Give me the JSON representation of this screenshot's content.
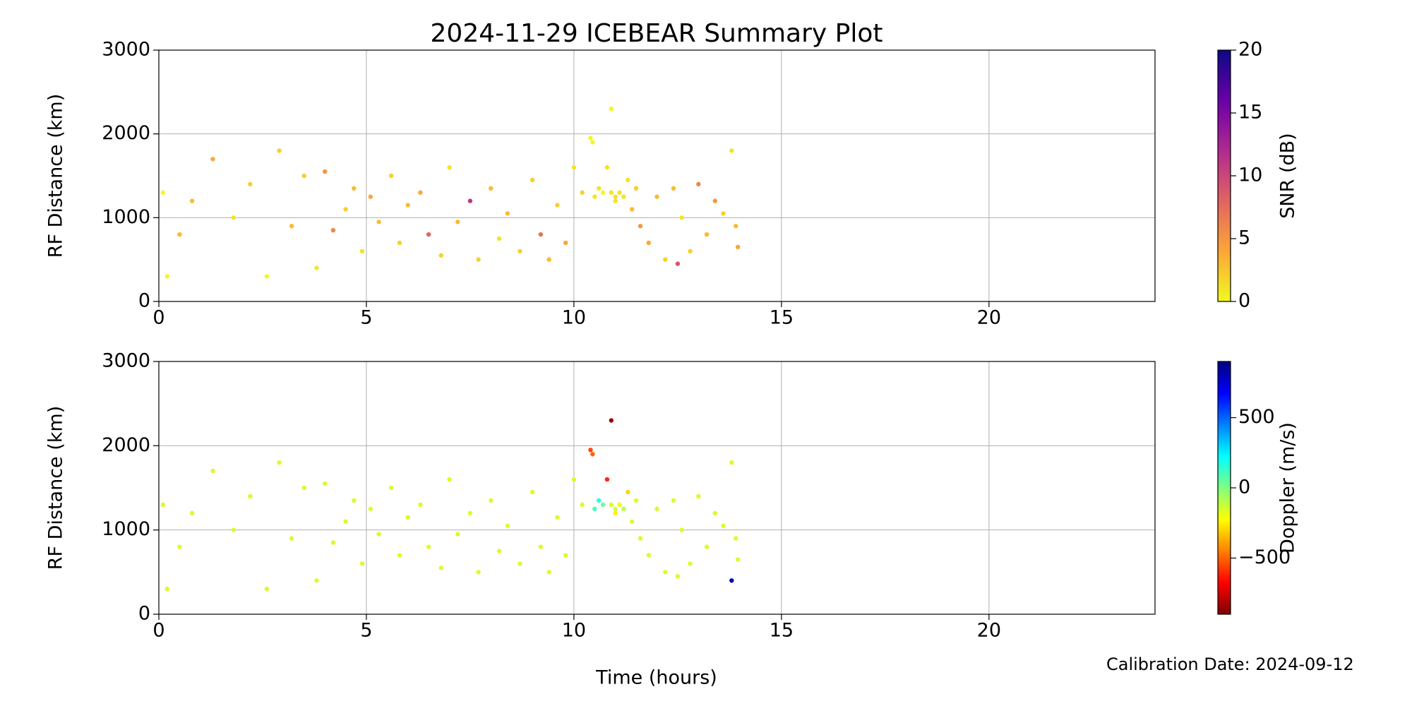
{
  "chart_data": [
    {
      "type": "scatter",
      "title": "2024-11-29 ICEBEAR Summary Plot",
      "ylabel": "RF Distance (km)",
      "xlim": [
        0,
        24
      ],
      "ylim": [
        0,
        3000
      ],
      "xticks": [
        0,
        5,
        10,
        15,
        20
      ],
      "yticks": [
        0,
        1000,
        2000,
        3000
      ],
      "grid": true,
      "colorbar": {
        "label": "SNR (dB)",
        "clim": [
          0,
          20
        ],
        "ticks": [
          0,
          5,
          10,
          15,
          20
        ],
        "colormap": [
          "#f0f921",
          "#fca636",
          "#e16462",
          "#b12a90",
          "#6a00a8",
          "#0d0887"
        ]
      },
      "x": [
        0.1,
        0.2,
        0.5,
        0.8,
        1.3,
        1.8,
        2.2,
        2.6,
        2.9,
        3.2,
        3.5,
        3.8,
        4.0,
        4.2,
        4.5,
        4.7,
        4.9,
        5.1,
        5.3,
        5.6,
        5.8,
        6.0,
        6.3,
        6.5,
        6.8,
        7.0,
        7.2,
        7.5,
        7.7,
        8.0,
        8.2,
        8.4,
        8.7,
        9.0,
        9.2,
        9.4,
        9.6,
        9.8,
        10.0,
        10.2,
        10.4,
        10.45,
        10.5,
        10.6,
        10.7,
        10.8,
        10.9,
        11.0,
        11.1,
        11.2,
        11.3,
        11.4,
        11.5,
        11.6,
        11.8,
        12.0,
        12.2,
        12.4,
        12.6,
        12.8,
        13.0,
        13.2,
        13.4,
        13.6,
        13.8,
        13.9,
        13.95,
        10.9,
        11.0,
        12.5
      ],
      "y": [
        1300,
        300,
        800,
        1200,
        1700,
        1000,
        1400,
        300,
        1800,
        900,
        1500,
        400,
        1550,
        850,
        1100,
        1350,
        600,
        1250,
        950,
        1500,
        700,
        1150,
        1300,
        800,
        550,
        1600,
        950,
        1200,
        500,
        1350,
        750,
        1050,
        600,
        1450,
        800,
        500,
        1150,
        700,
        1600,
        1300,
        1950,
        1900,
        1250,
        1350,
        1300,
        1600,
        2300,
        1200,
        1300,
        1250,
        1450,
        1100,
        1350,
        900,
        700,
        1250,
        500,
        1350,
        1000,
        600,
        1400,
        800,
        1200,
        1050,
        1800,
        900,
        650,
        1300,
        1250,
        450
      ],
      "c": [
        0,
        0,
        3,
        3,
        4,
        1,
        2,
        0,
        2,
        3,
        2,
        1,
        5,
        6,
        2,
        3,
        1,
        4,
        3,
        2,
        2,
        3,
        4,
        8,
        2,
        1,
        3,
        11,
        2,
        3,
        1,
        3,
        2,
        2,
        7,
        3,
        2,
        4,
        1,
        2,
        0,
        0,
        1,
        1,
        0,
        1,
        0,
        1,
        1,
        1,
        1,
        3,
        2,
        5,
        4,
        3,
        2,
        3,
        1,
        2,
        6,
        3,
        5,
        2,
        1,
        3,
        4,
        1,
        1,
        9
      ]
    },
    {
      "type": "scatter",
      "ylabel": "RF Distance (km)",
      "xlabel": "Time (hours)",
      "annotation": "Calibration Date: 2024-09-12",
      "xlim": [
        0,
        24
      ],
      "ylim": [
        0,
        3000
      ],
      "xticks": [
        0,
        5,
        10,
        15,
        20
      ],
      "yticks": [
        0,
        1000,
        2000,
        3000
      ],
      "grid": true,
      "colorbar": {
        "label": "Doppler (m/s)",
        "clim": [
          -900,
          900
        ],
        "ticks": [
          {
            "value": -500,
            "label": "−500"
          },
          0,
          500
        ],
        "colormap": [
          "#800000",
          "#ff0000",
          "#ff8000",
          "#ffff00",
          "#80ff80",
          "#00ffff",
          "#0080ff",
          "#0000ff",
          "#000080"
        ]
      },
      "x": [
        0.1,
        0.2,
        0.5,
        0.8,
        1.3,
        1.8,
        2.2,
        2.6,
        2.9,
        3.2,
        3.5,
        3.8,
        4.0,
        4.2,
        4.5,
        4.7,
        4.9,
        5.1,
        5.3,
        5.6,
        5.8,
        6.0,
        6.3,
        6.5,
        6.8,
        7.0,
        7.2,
        7.5,
        7.7,
        8.0,
        8.2,
        8.4,
        8.7,
        9.0,
        9.2,
        9.4,
        9.6,
        9.8,
        10.0,
        10.2,
        10.4,
        10.45,
        10.5,
        10.6,
        10.7,
        10.8,
        10.9,
        11.0,
        11.1,
        11.2,
        11.3,
        11.4,
        11.5,
        11.6,
        11.8,
        12.0,
        12.2,
        12.4,
        12.6,
        12.8,
        13.0,
        13.2,
        13.4,
        13.6,
        13.8,
        13.9,
        13.95,
        10.9,
        11.0,
        12.5,
        13.8
      ],
      "y": [
        1300,
        300,
        800,
        1200,
        1700,
        1000,
        1400,
        300,
        1800,
        900,
        1500,
        400,
        1550,
        850,
        1100,
        1350,
        600,
        1250,
        950,
        1500,
        700,
        1150,
        1300,
        800,
        550,
        1600,
        950,
        1200,
        500,
        1350,
        750,
        1050,
        600,
        1450,
        800,
        500,
        1150,
        700,
        1600,
        1300,
        1950,
        1900,
        1250,
        1350,
        1300,
        1600,
        2300,
        1200,
        1300,
        1250,
        1450,
        1100,
        1350,
        900,
        700,
        1250,
        500,
        1350,
        1000,
        600,
        1400,
        800,
        1200,
        1050,
        1800,
        900,
        650,
        1300,
        1250,
        450,
        400
      ],
      "c": [
        -150,
        -150,
        -150,
        -150,
        -150,
        -150,
        -150,
        -150,
        -150,
        -150,
        -150,
        -150,
        -150,
        -150,
        -150,
        -150,
        -150,
        -150,
        -150,
        -150,
        -150,
        -150,
        -150,
        -150,
        -150,
        -150,
        -150,
        -150,
        -150,
        -150,
        -150,
        -150,
        -150,
        -150,
        -150,
        -150,
        -150,
        -150,
        -150,
        -150,
        -550,
        -500,
        100,
        150,
        50,
        -600,
        -850,
        -250,
        -200,
        -100,
        -300,
        -150,
        -150,
        -150,
        -150,
        -150,
        -150,
        -150,
        -150,
        -150,
        -150,
        -150,
        -150,
        -150,
        -150,
        -150,
        -150,
        -150,
        -150,
        -150,
        800
      ]
    }
  ]
}
